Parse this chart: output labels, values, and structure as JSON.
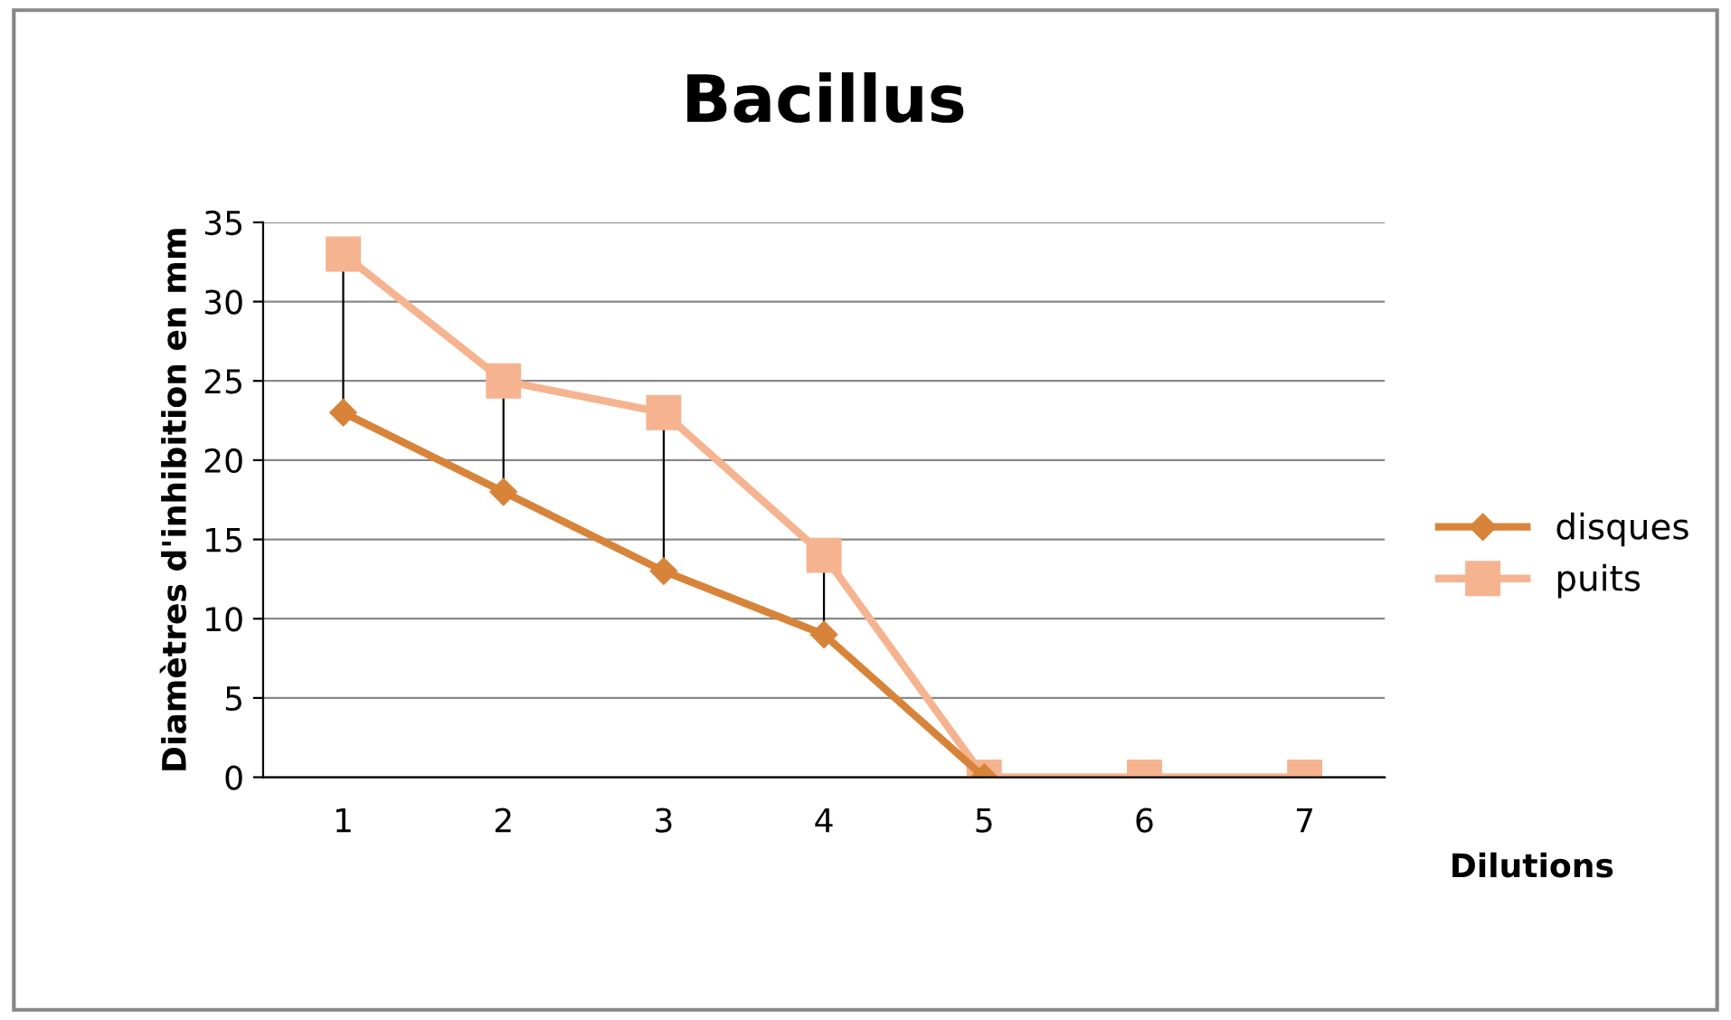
{
  "chart_data": {
    "type": "line",
    "title": "Bacillus",
    "xlabel": "Dilutions",
    "ylabel": "Diamètres d'inhibition en mm",
    "categories": [
      "1",
      "2",
      "3",
      "4",
      "5",
      "6",
      "7"
    ],
    "series": [
      {
        "name": "disques",
        "color": "#d7843a",
        "marker": "diamond",
        "values": [
          23,
          18,
          13,
          9,
          0,
          null,
          null
        ]
      },
      {
        "name": "puits",
        "color": "#f6b38f",
        "marker": "square",
        "values": [
          33,
          25,
          23,
          14,
          0,
          0,
          0
        ]
      }
    ],
    "ylim": [
      0,
      35
    ],
    "yticks": [
      0,
      5,
      10,
      15,
      20,
      25,
      30,
      35
    ],
    "grid": "y",
    "legend": "right",
    "line_style": "solid"
  }
}
